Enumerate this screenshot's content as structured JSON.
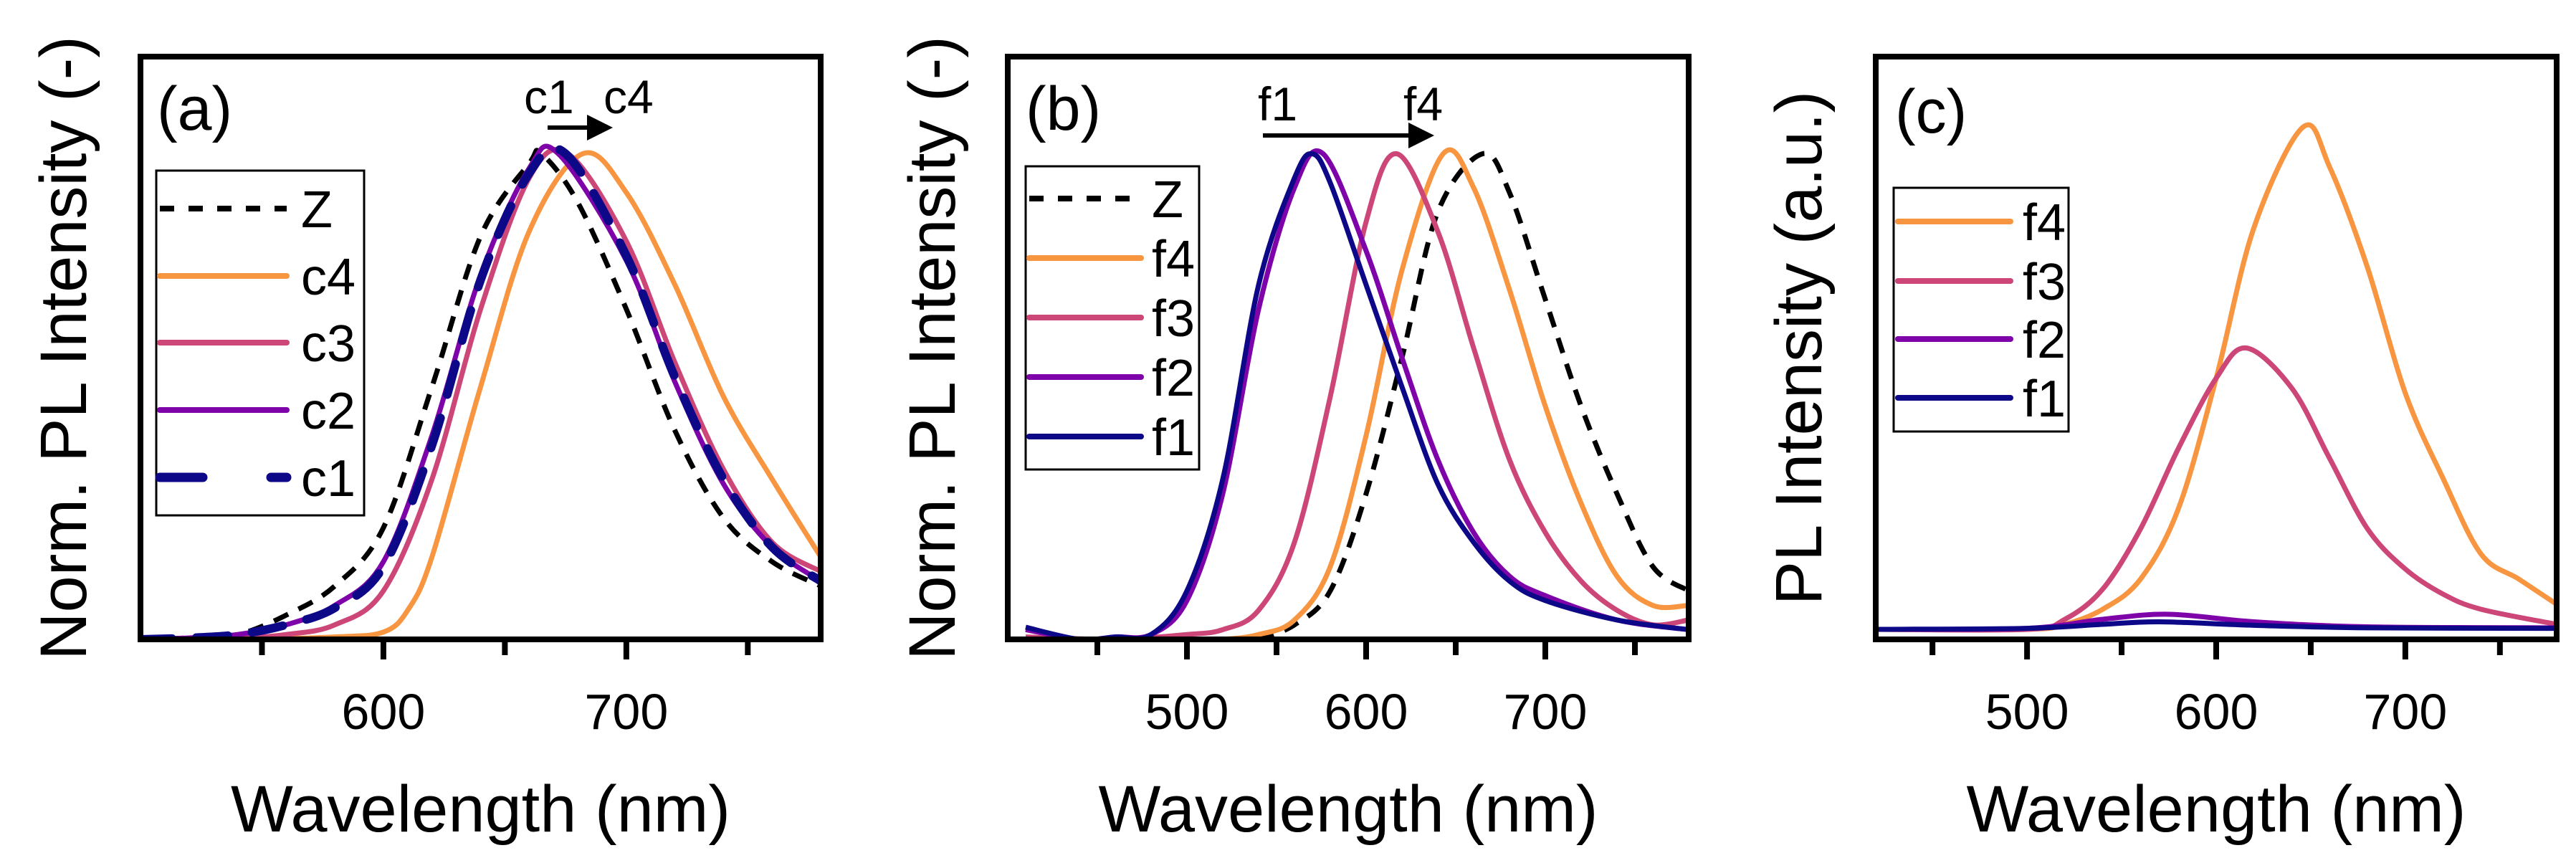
{
  "colors": {
    "Z": "#000000",
    "navy": "#0d0887",
    "purple": "#7e03a8",
    "pink": "#cc4778",
    "orange": "#f89540"
  },
  "chart_data": [
    {
      "type": "line",
      "panel_label": "(a)",
      "xlabel": "Wavelength (nm)",
      "ylabel": "Norm. PL Intensity (-)",
      "xlim": [
        500,
        780
      ],
      "ylim": [
        0,
        1.2
      ],
      "xticks": [
        550,
        600,
        650,
        700,
        750
      ],
      "xtick_labels": [
        "",
        "600",
        "",
        "700",
        ""
      ],
      "annotation": {
        "from": "c1",
        "to": "c4"
      },
      "legend_position": "upper-left",
      "series": [
        {
          "name": "Z",
          "style": "dashed",
          "color": "#000000",
          "x": [
            500,
            520,
            540,
            560,
            580,
            600,
            620,
            640,
            660,
            665,
            680,
            700,
            720,
            740,
            760,
            780
          ],
          "y": [
            0,
            0.003,
            0.01,
            0.05,
            0.11,
            0.23,
            0.52,
            0.83,
            0.98,
            1.0,
            0.9,
            0.68,
            0.43,
            0.25,
            0.16,
            0.11
          ]
        },
        {
          "name": "c4",
          "style": "solid",
          "color": "#f89540",
          "x": [
            500,
            540,
            580,
            600,
            610,
            620,
            640,
            660,
            682,
            700,
            720,
            740,
            760,
            780
          ],
          "y": [
            0,
            0,
            0.005,
            0.015,
            0.06,
            0.17,
            0.52,
            0.84,
            1.0,
            0.92,
            0.73,
            0.5,
            0.33,
            0.17
          ]
        },
        {
          "name": "c3",
          "style": "solid",
          "color": "#cc4778",
          "x": [
            500,
            540,
            560,
            580,
            600,
            620,
            640,
            660,
            676,
            700,
            720,
            740,
            760,
            780
          ],
          "y": [
            0,
            0.003,
            0.01,
            0.03,
            0.1,
            0.33,
            0.68,
            0.95,
            1.0,
            0.82,
            0.57,
            0.35,
            0.2,
            0.14
          ]
        },
        {
          "name": "c2",
          "style": "solid",
          "color": "#7e03a8",
          "x": [
            500,
            520,
            540,
            560,
            580,
            600,
            620,
            640,
            660,
            672,
            700,
            720,
            740,
            760,
            780
          ],
          "y": [
            0,
            0.003,
            0.01,
            0.03,
            0.07,
            0.16,
            0.42,
            0.75,
            0.97,
            1.0,
            0.78,
            0.53,
            0.32,
            0.19,
            0.12
          ]
        },
        {
          "name": "c1",
          "style": "long-dashed",
          "color": "#0d0887",
          "x": [
            500,
            520,
            540,
            560,
            580,
            600,
            620,
            640,
            660,
            675,
            700,
            720,
            740,
            760,
            780
          ],
          "y": [
            0,
            0.003,
            0.01,
            0.03,
            0.065,
            0.15,
            0.4,
            0.74,
            0.96,
            1.0,
            0.79,
            0.54,
            0.33,
            0.19,
            0.12
          ]
        }
      ]
    },
    {
      "type": "line",
      "panel_label": "(b)",
      "xlabel": "Wavelength (nm)",
      "ylabel": "Norm. PL Intensity (-)",
      "xlim": [
        400,
        780
      ],
      "ylim": [
        0,
        1.2
      ],
      "xticks": [
        450,
        500,
        550,
        600,
        650,
        700,
        750
      ],
      "xtick_labels": [
        "",
        "500",
        "",
        "600",
        "",
        "700",
        ""
      ],
      "annotation": {
        "from": "f1",
        "to": "f4"
      },
      "legend_position": "upper-left",
      "series": [
        {
          "name": "Z",
          "style": "dashed",
          "color": "#000000",
          "x": [
            540,
            560,
            580,
            600,
            620,
            640,
            665,
            680,
            700,
            720,
            740,
            760,
            780
          ],
          "y": [
            0,
            0.03,
            0.1,
            0.3,
            0.58,
            0.88,
            1.0,
            0.92,
            0.7,
            0.48,
            0.3,
            0.15,
            0.1
          ]
        },
        {
          "name": "f4",
          "style": "solid",
          "color": "#f89540",
          "x": [
            410,
            460,
            500,
            520,
            540,
            560,
            580,
            600,
            620,
            643,
            660,
            680,
            700,
            720,
            740,
            760,
            780
          ],
          "y": [
            0,
            0,
            0,
            0,
            0.01,
            0.04,
            0.15,
            0.42,
            0.76,
            1.0,
            0.93,
            0.72,
            0.48,
            0.28,
            0.13,
            0.07,
            0.07
          ]
        },
        {
          "name": "f3",
          "style": "solid",
          "color": "#cc4778",
          "x": [
            410,
            460,
            500,
            520,
            540,
            560,
            580,
            600,
            617,
            640,
            660,
            680,
            700,
            720,
            740,
            760,
            780
          ],
          "y": [
            0.005,
            0,
            0.01,
            0.02,
            0.06,
            0.2,
            0.5,
            0.86,
            1.0,
            0.84,
            0.6,
            0.37,
            0.22,
            0.12,
            0.06,
            0.03,
            0.04
          ]
        },
        {
          "name": "f2",
          "style": "solid",
          "color": "#7e03a8",
          "x": [
            410,
            440,
            460,
            480,
            500,
            520,
            540,
            560,
            576,
            600,
            620,
            640,
            660,
            680,
            700,
            740,
            780
          ],
          "y": [
            0.02,
            0,
            0.005,
            0.01,
            0.08,
            0.3,
            0.68,
            0.93,
            1.0,
            0.8,
            0.58,
            0.37,
            0.22,
            0.13,
            0.09,
            0.04,
            0.02
          ]
        },
        {
          "name": "f1",
          "style": "solid",
          "color": "#0d0887",
          "x": [
            410,
            440,
            460,
            480,
            500,
            520,
            540,
            560,
            570,
            580,
            600,
            620,
            640,
            660,
            680,
            700,
            740,
            780
          ],
          "y": [
            0.025,
            0,
            0.005,
            0.01,
            0.1,
            0.33,
            0.73,
            0.95,
            1.0,
            0.94,
            0.73,
            0.52,
            0.32,
            0.2,
            0.12,
            0.08,
            0.04,
            0.02
          ]
        }
      ]
    },
    {
      "type": "line",
      "panel_label": "(c)",
      "xlabel": "Wavelength (nm)",
      "ylabel": "PL Intensity (a.u.)",
      "xlim": [
        420,
        780
      ],
      "ylim": [
        -0.02,
        1.14
      ],
      "xticks": [
        450,
        500,
        550,
        600,
        650,
        700,
        750
      ],
      "xtick_labels": [
        "",
        "500",
        "",
        "600",
        "",
        "700",
        ""
      ],
      "legend_position": "upper-left",
      "series": [
        {
          "name": "f4",
          "style": "solid",
          "color": "#f89540",
          "x": [
            420,
            500,
            520,
            540,
            560,
            580,
            600,
            620,
            646,
            660,
            680,
            700,
            720,
            740,
            760,
            780
          ],
          "y": [
            0,
            0,
            0.01,
            0.04,
            0.1,
            0.24,
            0.5,
            0.8,
            1.0,
            0.92,
            0.72,
            0.47,
            0.3,
            0.15,
            0.1,
            0.05
          ]
        },
        {
          "name": "f3",
          "style": "solid",
          "color": "#cc4778",
          "x": [
            420,
            500,
            520,
            540,
            560,
            580,
            600,
            616,
            640,
            660,
            680,
            700,
            720,
            740,
            780
          ],
          "y": [
            0,
            0.0,
            0.02,
            0.08,
            0.2,
            0.36,
            0.5,
            0.56,
            0.48,
            0.34,
            0.2,
            0.12,
            0.07,
            0.04,
            0.01
          ]
        },
        {
          "name": "f2",
          "style": "solid",
          "color": "#7e03a8",
          "x": [
            420,
            500,
            540,
            575,
            620,
            680,
            780
          ],
          "y": [
            0,
            0.002,
            0.02,
            0.03,
            0.015,
            0.005,
            0.003
          ]
        },
        {
          "name": "f1",
          "style": "solid",
          "color": "#0d0887",
          "x": [
            420,
            500,
            540,
            570,
            620,
            680,
            780
          ],
          "y": [
            0,
            0.002,
            0.01,
            0.015,
            0.008,
            0.003,
            0.002
          ]
        }
      ]
    }
  ]
}
